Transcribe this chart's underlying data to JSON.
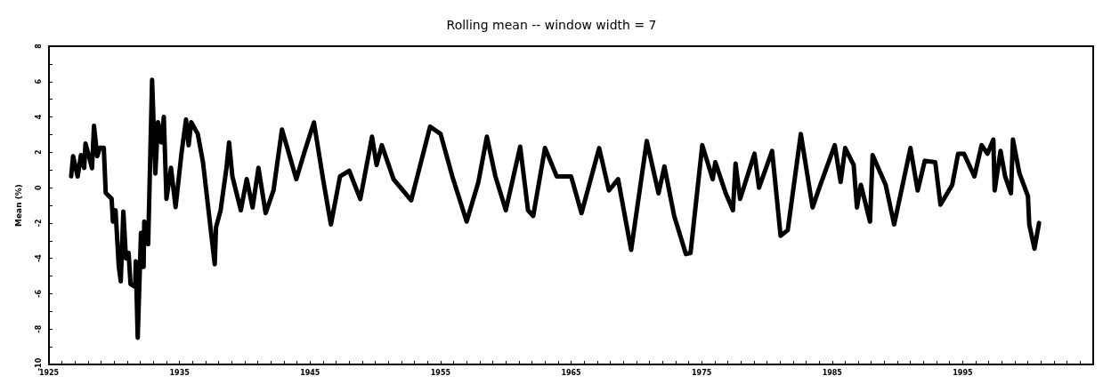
{
  "chart_data": {
    "type": "line",
    "title": "Rolling mean -- window width = 7",
    "ylabel": "Mean (%)",
    "xlim": [
      1925,
      2005
    ],
    "xticks": [
      1925,
      {
        "value": 1926,
        "label": null
      },
      {
        "value": 1927,
        "label": null
      },
      {
        "value": 1928,
        "label": null
      },
      {
        "value": 1929,
        "label": null
      },
      {
        "value": 1930,
        "label": null
      },
      {
        "value": 1931,
        "label": null
      },
      {
        "value": 1932,
        "label": null
      },
      {
        "value": 1933,
        "label": null
      },
      {
        "value": 1934,
        "label": null
      },
      1935,
      {
        "value": 1936,
        "label": null
      },
      {
        "value": 1937,
        "label": null
      },
      {
        "value": 1938,
        "label": null
      },
      {
        "value": 1939,
        "label": null
      },
      {
        "value": 1940,
        "label": null
      },
      {
        "value": 1941,
        "label": null
      },
      {
        "value": 1942,
        "label": null
      },
      {
        "value": 1943,
        "label": null
      },
      {
        "value": 1944,
        "label": null
      },
      1945,
      {
        "value": 1946,
        "label": null
      },
      {
        "value": 1947,
        "label": null
      },
      {
        "value": 1948,
        "label": null
      },
      {
        "value": 1949,
        "label": null
      },
      {
        "value": 1950,
        "label": null
      },
      {
        "value": 1951,
        "label": null
      },
      {
        "value": 1952,
        "label": null
      },
      {
        "value": 1953,
        "label": null
      },
      {
        "value": 1954,
        "label": null
      },
      1955,
      {
        "value": 1956,
        "label": null
      },
      {
        "value": 1957,
        "label": null
      },
      {
        "value": 1958,
        "label": null
      },
      {
        "value": 1959,
        "label": null
      },
      {
        "value": 1960,
        "label": null
      },
      {
        "value": 1961,
        "label": null
      },
      {
        "value": 1962,
        "label": null
      },
      {
        "value": 1963,
        "label": null
      },
      {
        "value": 1964,
        "label": null
      },
      1965,
      {
        "value": 1966,
        "label": null
      },
      {
        "value": 1967,
        "label": null
      },
      {
        "value": 1968,
        "label": null
      },
      {
        "value": 1969,
        "label": null
      },
      {
        "value": 1970,
        "label": null
      },
      {
        "value": 1971,
        "label": null
      },
      {
        "value": 1972,
        "label": null
      },
      {
        "value": 1973,
        "label": null
      },
      {
        "value": 1974,
        "label": null
      },
      1975,
      {
        "value": 1976,
        "label": null
      },
      {
        "value": 1977,
        "label": null
      },
      {
        "value": 1978,
        "label": null
      },
      {
        "value": 1979,
        "label": null
      },
      {
        "value": 1980,
        "label": null
      },
      {
        "value": 1981,
        "label": null
      },
      {
        "value": 1982,
        "label": null
      },
      {
        "value": 1983,
        "label": null
      },
      {
        "value": 1984,
        "label": null
      },
      1985,
      {
        "value": 1986,
        "label": null
      },
      {
        "value": 1987,
        "label": null
      },
      {
        "value": 1988,
        "label": null
      },
      {
        "value": 1989,
        "label": null
      },
      {
        "value": 1990,
        "label": null
      },
      {
        "value": 1991,
        "label": null
      },
      {
        "value": 1992,
        "label": null
      },
      {
        "value": 1993,
        "label": null
      },
      {
        "value": 1994,
        "label": null
      },
      1995,
      {
        "value": 1996,
        "label": null
      },
      {
        "value": 1997,
        "label": null
      },
      {
        "value": 1998,
        "label": null
      },
      {
        "value": 1999,
        "label": null
      },
      {
        "value": 2000,
        "label": null
      },
      {
        "value": 2001,
        "label": null
      },
      {
        "value": 2002,
        "label": null
      },
      {
        "value": 2003,
        "label": null
      },
      {
        "value": 2004,
        "label": null
      }
    ],
    "ylim": [
      -10,
      8
    ],
    "yticks": [
      -10,
      {
        "value": -9,
        "label": null
      },
      -8,
      {
        "value": -7,
        "label": null
      },
      -6,
      {
        "value": -5,
        "label": null
      },
      -4,
      {
        "value": -3,
        "label": null
      },
      -2,
      {
        "value": -1,
        "label": null
      },
      0,
      {
        "value": 1,
        "label": null
      },
      2,
      {
        "value": 3,
        "label": null
      },
      4,
      {
        "value": 5,
        "label": null
      },
      6,
      {
        "value": 7,
        "label": null
      },
      8
    ],
    "grid": false,
    "marker": "none",
    "line_style": "solid",
    "series": [
      {
        "color": "#000000",
        "x": [
          1926.7,
          1926.85,
          1927.2,
          1927.45,
          1927.7,
          1927.8,
          1928.3,
          1928.45,
          1928.7,
          1928.9,
          1929.2,
          1929.35,
          1929.8,
          1929.9,
          1930.1,
          1930.35,
          1930.5,
          1930.7,
          1930.9,
          1931.1,
          1931.25,
          1931.6,
          1931.65,
          1931.8,
          1932.05,
          1932.25,
          1932.3,
          1932.6,
          1932.9,
          1933.15,
          1933.35,
          1933.6,
          1933.8,
          1934.0,
          1934.35,
          1934.7,
          1935.15,
          1935.5,
          1935.7,
          1935.9,
          1936.4,
          1936.8,
          1937.7,
          1937.8,
          1938.15,
          1938.6,
          1938.8,
          1939.05,
          1939.7,
          1940.15,
          1940.6,
          1941.05,
          1941.6,
          1942.2,
          1942.85,
          1943.95,
          1944.6,
          1945.3,
          1946.0,
          1946.6,
          1947.3,
          1948.0,
          1948.85,
          1949.75,
          1950.1,
          1950.5,
          1951.4,
          1952.75,
          1954.2,
          1955.0,
          1955.9,
          1957.0,
          1957.9,
          1958.55,
          1959.2,
          1960.0,
          1961.1,
          1961.7,
          1962.1,
          1963.0,
          1963.9,
          1965.0,
          1965.8,
          1967.15,
          1967.9,
          1968.6,
          1969.6,
          1970.8,
          1971.7,
          1972.15,
          1972.9,
          1973.8,
          1974.15,
          1975.05,
          1975.85,
          1976.05,
          1976.85,
          1977.4,
          1977.6,
          1977.95,
          1979.05,
          1979.4,
          1980.4,
          1981.05,
          1981.6,
          1982.6,
          1983.5,
          1984.1,
          1985.2,
          1985.65,
          1986.0,
          1986.65,
          1986.9,
          1987.2,
          1987.9,
          1988.1,
          1989.1,
          1989.75,
          1991.0,
          1991.55,
          1992.1,
          1992.9,
          1993.3,
          1994.2,
          1994.65,
          1995.1,
          1995.9,
          1996.45,
          1996.9,
          1997.35,
          1997.45,
          1997.9,
          1998.25,
          1998.7,
          1998.85,
          1999.35,
          2000.0,
          2000.1,
          2000.5,
          2000.85
        ],
        "values": [
          0.64,
          1.78,
          0.63,
          1.84,
          1.12,
          2.5,
          1.1,
          3.5,
          1.78,
          2.26,
          2.26,
          -0.3,
          -0.63,
          -1.92,
          -1.28,
          -4.47,
          -5.3,
          -1.35,
          -4.0,
          -3.69,
          -5.45,
          -5.6,
          -4.17,
          -8.49,
          -2.56,
          -4.48,
          -1.92,
          -3.2,
          6.1,
          0.8,
          3.7,
          2.56,
          4.0,
          -0.63,
          1.12,
          -1.1,
          1.92,
          3.85,
          2.4,
          3.7,
          3.04,
          1.44,
          -4.33,
          -2.24,
          -1.28,
          1.12,
          2.56,
          0.64,
          -1.28,
          0.48,
          -1.12,
          1.12,
          -1.44,
          -0.16,
          3.29,
          0.48,
          2.08,
          3.69,
          0.48,
          -2.08,
          0.64,
          0.96,
          -0.64,
          2.88,
          1.28,
          2.4,
          0.48,
          -0.72,
          3.45,
          3.04,
          0.64,
          -1.92,
          0.32,
          2.88,
          0.64,
          -1.28,
          2.32,
          -1.28,
          -1.6,
          2.24,
          0.64,
          0.64,
          -1.44,
          2.24,
          -0.16,
          0.48,
          -3.52,
          2.64,
          -0.32,
          1.2,
          -1.6,
          -3.76,
          -3.69,
          2.4,
          0.48,
          1.44,
          -0.32,
          -1.28,
          1.36,
          -0.64,
          1.92,
          0.0,
          2.08,
          -2.72,
          -2.4,
          3.04,
          -1.12,
          0.16,
          2.4,
          0.32,
          2.24,
          1.28,
          -1.12,
          0.16,
          -1.92,
          1.84,
          0.16,
          -2.08,
          2.24,
          -0.16,
          1.52,
          1.44,
          -0.96,
          0.16,
          1.92,
          1.92,
          0.64,
          2.4,
          1.92,
          2.72,
          -0.16,
          2.08,
          0.64,
          -0.32,
          2.72,
          0.8,
          -0.48,
          -2.08,
          -3.45,
          -2.0
        ]
      }
    ]
  }
}
